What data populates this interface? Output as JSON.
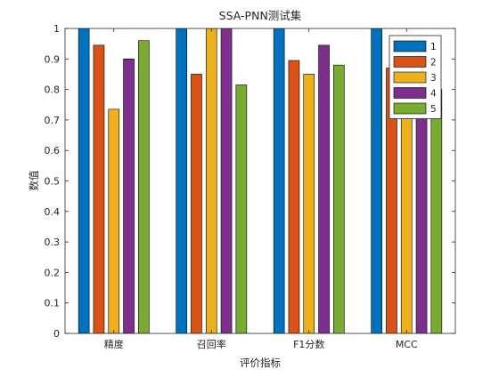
{
  "chart_data": {
    "type": "bar",
    "title": "SSA-PNN测试集",
    "xlabel": "评价指标",
    "ylabel": "数值",
    "categories": [
      "精度",
      "召回率",
      "F1分数",
      "MCC"
    ],
    "ylim": [
      0,
      1
    ],
    "yticks": [
      "0",
      "0.1",
      "0.2",
      "0.3",
      "0.4",
      "0.5",
      "0.6",
      "0.7",
      "0.8",
      "0.9",
      "1"
    ],
    "grid": false,
    "legend_position": "top-right",
    "series": [
      {
        "name": "1",
        "color": "#0072BD",
        "values": [
          1.0,
          1.0,
          1.0,
          1.0
        ]
      },
      {
        "name": "2",
        "color": "#D95319",
        "values": [
          0.945,
          0.85,
          0.895,
          0.87
        ]
      },
      {
        "name": "3",
        "color": "#EDB120",
        "values": [
          0.735,
          1.0,
          0.85,
          0.8
        ]
      },
      {
        "name": "4",
        "color": "#7E2F8E",
        "values": [
          0.9,
          1.0,
          0.945,
          0.86
        ]
      },
      {
        "name": "5",
        "color": "#77AC30",
        "values": [
          0.96,
          0.815,
          0.88,
          0.8
        ]
      }
    ]
  }
}
